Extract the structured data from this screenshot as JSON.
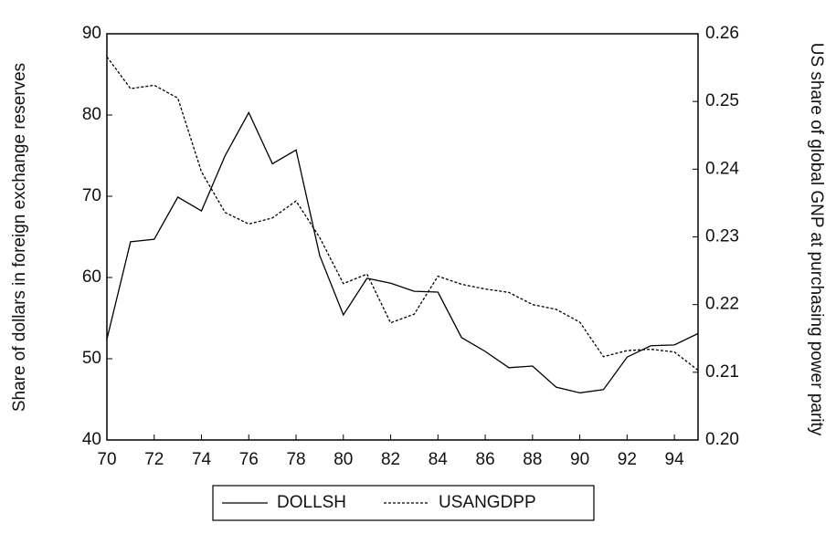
{
  "chart_data": {
    "type": "line",
    "x": [
      70,
      71,
      72,
      73,
      74,
      75,
      76,
      77,
      78,
      79,
      80,
      81,
      82,
      83,
      84,
      85,
      86,
      87,
      88,
      89,
      90,
      91,
      92,
      93,
      94,
      95
    ],
    "series": [
      {
        "name": "DOLLSH",
        "color": "#000000",
        "line_style": "solid",
        "values": [
          52.4,
          64.4,
          64.7,
          69.9,
          68.2,
          75.0,
          80.3,
          74.0,
          75.7,
          62.7,
          55.4,
          59.9,
          59.3,
          58.3,
          58.2,
          52.6,
          50.9,
          48.9,
          49.1,
          46.5,
          45.8,
          46.2,
          50.2,
          51.6,
          51.7,
          53.1
        ]
      },
      {
        "name": "USANGDPP",
        "color": "#000000",
        "line_style": "dashed",
        "axis": "y2",
        "values": [
          0.2566,
          0.2519,
          0.2524,
          0.2505,
          0.2396,
          0.2336,
          0.2319,
          0.2328,
          0.2353,
          0.2299,
          0.2231,
          0.2245,
          0.2173,
          0.2186,
          0.2242,
          0.223,
          0.2223,
          0.2218,
          0.22,
          0.2193,
          0.2174,
          0.2123,
          0.2132,
          0.2134,
          0.213,
          0.2103
        ]
      }
    ],
    "xlim": [
      70,
      95
    ],
    "xticks": [
      70,
      72,
      74,
      76,
      78,
      80,
      82,
      84,
      86,
      88,
      90,
      92,
      94
    ],
    "ylim": [
      40,
      90
    ],
    "yticks": [
      40,
      50,
      60,
      70,
      80,
      90
    ],
    "y2lim": [
      0.2,
      0.26
    ],
    "y2ticks": [
      {
        "value": 0.2,
        "label": "0.20"
      },
      0.21,
      0.22,
      0.23,
      0.24,
      0.25,
      0.26
    ],
    "y_label": "Share of dollars in foreign exchange reserves",
    "y2_label": "US share of global GNP at purchasing power parity",
    "legend": "bottom"
  }
}
